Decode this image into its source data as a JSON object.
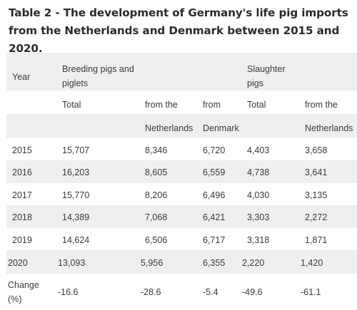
{
  "title": "Table 2 - The development of Germany's life pig imports from the Netherlands and Denmark between 2015 and 2020.",
  "header": {
    "year": "Year",
    "breeding_group": "Breeding pigs and piglets",
    "slaughter_group": "Slaughter pigs",
    "total_1": "Total",
    "from_the_1": "from the",
    "from": "from",
    "total_2": "Total",
    "from_the_2": "from the",
    "netherlands_1": "Netherlands",
    "denmark": "Denmark",
    "netherlands_2": "Netherlands"
  },
  "rows": [
    {
      "year": "2015",
      "bp_total": "15,707",
      "bp_nl": "8,346",
      "bp_dk": "6,720",
      "sp_total": "4,403",
      "sp_nl": "3,658"
    },
    {
      "year": "2016",
      "bp_total": "16,203",
      "bp_nl": "8,605",
      "bp_dk": "6,559",
      "sp_total": "4,738",
      "sp_nl": "3,641"
    },
    {
      "year": "2017",
      "bp_total": "15,770",
      "bp_nl": "8,206",
      "bp_dk": "6,496",
      "sp_total": "4,030",
      "sp_nl": "3,135"
    },
    {
      "year": "2018",
      "bp_total": "14,389",
      "bp_nl": "7,068",
      "bp_dk": "6,421",
      "sp_total": "3,303",
      "sp_nl": "2,272"
    },
    {
      "year": "2019",
      "bp_total": "14,624",
      "bp_nl": "6,506",
      "bp_dk": "6,717",
      "sp_total": "3,318",
      "sp_nl": "1,871"
    },
    {
      "year": "2020",
      "bp_total": "13,093",
      "bp_nl": "5,956",
      "bp_dk": "6,355",
      "sp_total": "2,220",
      "sp_nl": "1,420"
    }
  ],
  "change_row": {
    "label": "Change (%)",
    "bp_total": "-16.6",
    "bp_nl": "-28.6",
    "bp_dk": "-5.4",
    "sp_total": "-49.6",
    "sp_nl": "-61.1"
  }
}
